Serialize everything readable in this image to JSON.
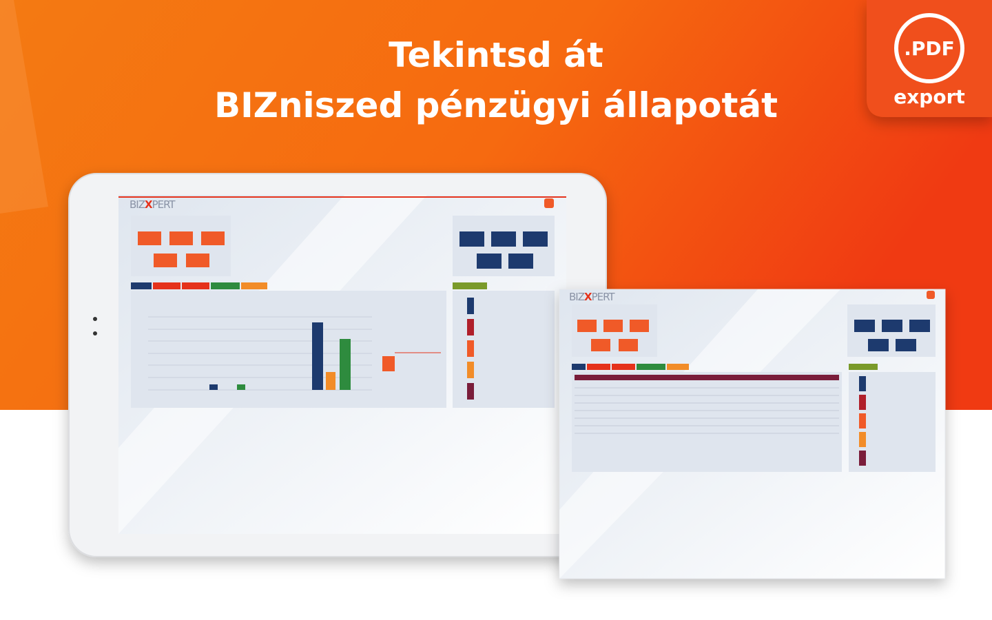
{
  "headline": {
    "line1": "Tekintsd át",
    "line2": "BIZniszed pénzügyi állapotát"
  },
  "badge": {
    "format": ".PDF",
    "label": "export"
  },
  "screens": [
    {
      "logo": [
        "BIZ",
        "X",
        "PERT"
      ]
    },
    {
      "logo": [
        "BIZ",
        "X",
        "PERT"
      ]
    }
  ]
}
